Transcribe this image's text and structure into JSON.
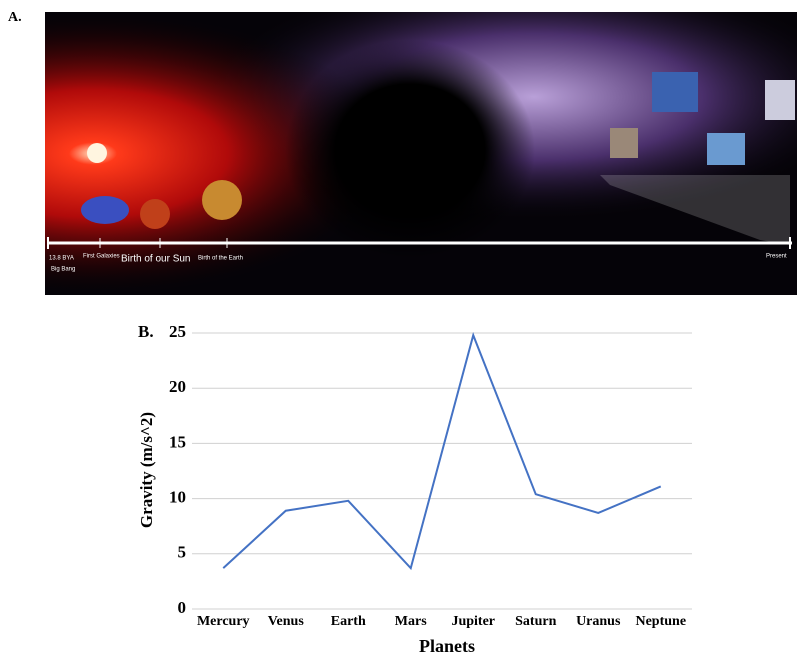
{
  "panel_a": {
    "label": "A.",
    "timeline": [
      "13.8 BYA",
      "Big Bang",
      "First Galaxies",
      "Birth of our Sun",
      "Birth of the Earth",
      "Present"
    ]
  },
  "chart_data": {
    "type": "line",
    "panel_label": "B.",
    "x_label": "Planets",
    "y_label": "Gravity (m/s^2)",
    "categories": [
      "Mercury",
      "Venus",
      "Earth",
      "Mars",
      "Jupiter",
      "Saturn",
      "Uranus",
      "Neptune"
    ],
    "values": [
      3.7,
      8.9,
      9.8,
      3.7,
      24.8,
      10.4,
      8.7,
      11.1
    ],
    "color": "#4472c4",
    "ylim": [
      0,
      25
    ],
    "yticks": [
      0,
      5,
      10,
      15,
      20,
      25
    ],
    "grid": true
  }
}
